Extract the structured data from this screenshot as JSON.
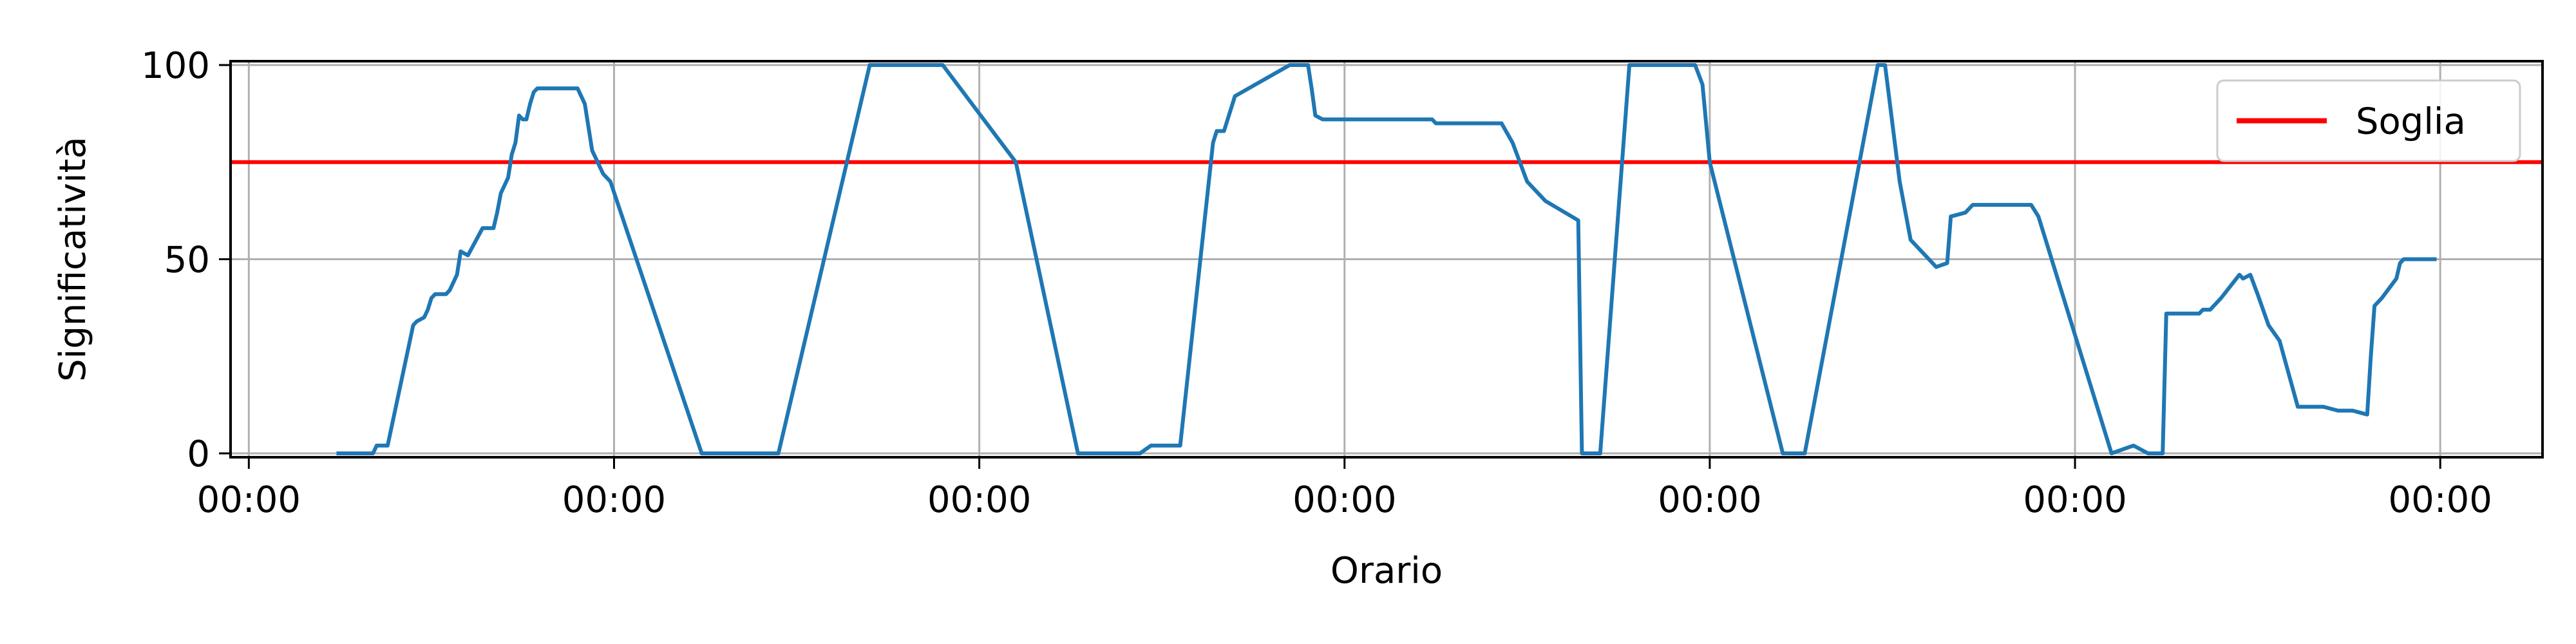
{
  "chart_data": {
    "type": "line",
    "title": "",
    "xlabel": "Orario",
    "ylabel": "Significatività",
    "x_ticks": [
      0,
      1,
      2,
      3,
      4,
      5,
      6
    ],
    "x_tick_labels": [
      "00:00",
      "00:00",
      "00:00",
      "00:00",
      "00:00",
      "00:00",
      "00:00"
    ],
    "y_ticks": [
      0,
      50,
      100
    ],
    "y_tick_labels": [
      "0",
      "50",
      "100"
    ],
    "xlim": [
      -0.05,
      6.28
    ],
    "ylim": [
      -1,
      101
    ],
    "grid": true,
    "legend_position": "top-right",
    "threshold": {
      "name": "Soglia",
      "value": 75,
      "color": "#ff0000"
    },
    "series": [
      {
        "color": "#1f77b4",
        "x": [
          0.24,
          0.34,
          0.35,
          0.38,
          0.45,
          0.46,
          0.48,
          0.49,
          0.5,
          0.51,
          0.54,
          0.55,
          0.57,
          0.58,
          0.6,
          0.64,
          0.66,
          0.67,
          0.68,
          0.69,
          0.7,
          0.71,
          0.72,
          0.73,
          0.74,
          0.75,
          0.76,
          0.77,
          0.78,
          0.79,
          0.8,
          0.81,
          0.82,
          0.83,
          0.84,
          0.85,
          0.9,
          0.92,
          0.94,
          0.97,
          0.99,
          1.24,
          1.45,
          1.7,
          1.72,
          1.88,
          1.9,
          2.1,
          2.27,
          2.29,
          2.44,
          2.47,
          2.52,
          2.55,
          2.64,
          2.65,
          2.67,
          2.7,
          2.85,
          2.9,
          2.91,
          2.92,
          2.94,
          2.96,
          2.98,
          3.22,
          3.24,
          3.25,
          3.39,
          3.43,
          3.46,
          3.48,
          3.5,
          3.55,
          3.64,
          3.65,
          3.67,
          3.7,
          3.78,
          3.8,
          3.95,
          3.96,
          3.98,
          4.0,
          4.2,
          4.22,
          4.26,
          4.46,
          4.48,
          4.52,
          4.55,
          4.62,
          4.65,
          4.66,
          4.7,
          4.72,
          4.74,
          4.86,
          4.88,
          4.9,
          5.1,
          5.13,
          5.16,
          5.2,
          5.23,
          5.24,
          5.25,
          5.3,
          5.33,
          5.34,
          5.35,
          5.36,
          5.37,
          5.4,
          5.45,
          5.46,
          5.48,
          5.5,
          5.53,
          5.56,
          5.61,
          5.62,
          5.66,
          5.68,
          5.72,
          5.74,
          5.76,
          5.8,
          5.81,
          5.82,
          5.84,
          5.88,
          5.89,
          5.9,
          5.93,
          5.99
        ],
        "y": [
          0,
          0,
          2,
          2,
          33,
          34,
          35,
          37,
          40,
          41,
          41,
          42,
          46,
          52,
          51,
          58,
          58,
          58,
          62,
          67,
          69,
          71,
          77,
          80,
          87,
          86,
          86,
          90,
          93,
          94,
          94,
          94,
          94,
          94,
          94,
          94,
          94,
          90,
          78,
          72,
          70,
          0,
          0,
          100,
          100,
          100,
          100,
          75,
          0,
          0,
          0,
          2,
          2,
          2,
          80,
          83,
          83,
          92,
          100,
          100,
          94,
          87,
          86,
          86,
          86,
          86,
          86,
          85,
          85,
          85,
          80,
          75,
          70,
          65,
          60,
          0,
          0,
          0,
          100,
          100,
          100,
          100,
          95,
          75,
          0,
          0,
          0,
          100,
          100,
          70,
          55,
          48,
          49,
          61,
          62,
          64,
          64,
          64,
          64,
          61,
          0,
          1,
          2,
          0,
          0,
          0,
          36,
          36,
          36,
          36,
          37,
          37,
          37,
          40,
          46,
          45,
          46,
          41,
          33,
          29,
          12,
          12,
          12,
          12,
          11,
          11,
          11,
          10,
          25,
          38,
          40,
          45,
          49,
          50,
          50,
          50
        ]
      }
    ]
  }
}
